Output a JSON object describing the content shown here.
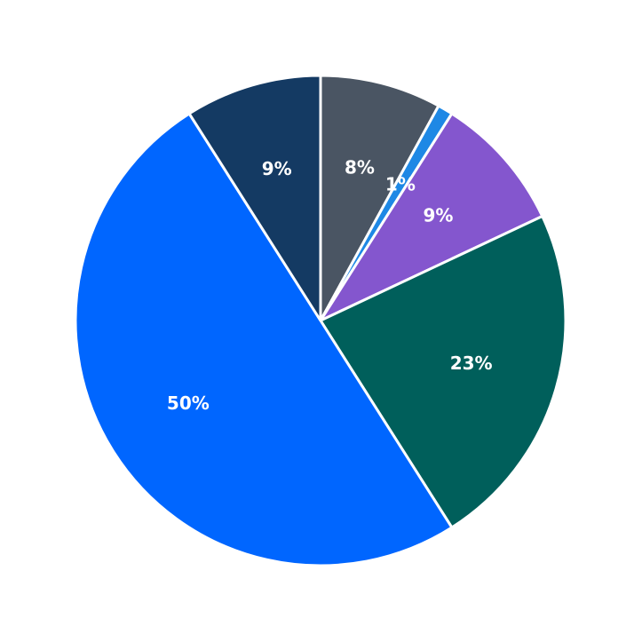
{
  "chart_data": {
    "type": "pie",
    "values": [
      8,
      1,
      9,
      23,
      50,
      9
    ],
    "value_labels": [
      "8%",
      "1%",
      "9%",
      "23%",
      "50%",
      "9%"
    ],
    "colors": [
      "#4a5563",
      "#1e88e5",
      "#8456ce",
      "#005f5b",
      "#0066ff",
      "#143a63"
    ]
  }
}
